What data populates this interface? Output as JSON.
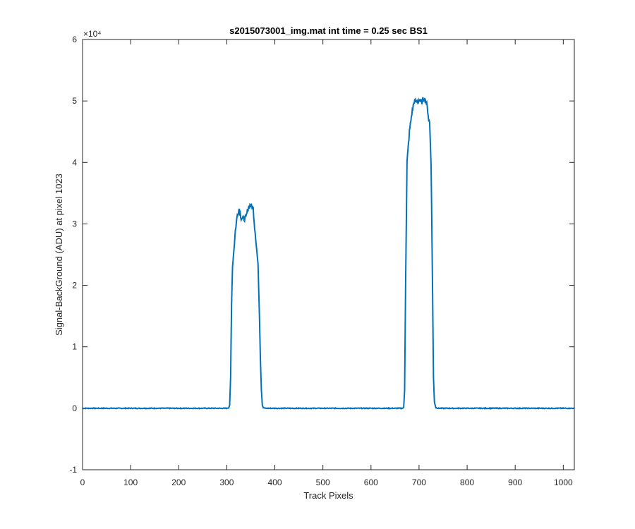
{
  "chart_data": {
    "type": "line",
    "title": "s2015073001_img.mat int time = 0.25 sec   BS1",
    "xlabel": "Track Pixels",
    "ylabel": "Signal-BackGround (ADU) at pixel 1023",
    "xlim": [
      0,
      1023
    ],
    "ylim": [
      -10000,
      60000
    ],
    "y_exponent_label": "×10⁴",
    "y_exponent": 4,
    "x_ticks": [
      0,
      100,
      200,
      300,
      400,
      500,
      600,
      700,
      800,
      900,
      1000
    ],
    "y_ticks": [
      -10000,
      0,
      10000,
      20000,
      30000,
      40000,
      50000,
      60000
    ],
    "y_tick_labels": [
      "-1",
      "0",
      "1",
      "2",
      "3",
      "4",
      "5",
      "6"
    ],
    "grid": false,
    "series": [
      {
        "color": "#0072BD",
        "x": [
          0,
          100,
          200,
          300,
          304,
          306,
          308,
          310,
          312,
          315,
          318,
          322,
          326,
          330,
          335,
          340,
          345,
          350,
          355,
          358,
          360,
          362,
          365,
          368,
          370,
          372,
          374,
          376,
          380,
          500,
          600,
          665,
          668,
          670,
          672,
          675,
          680,
          685,
          690,
          695,
          700,
          705,
          710,
          715,
          718,
          720,
          722,
          725,
          728,
          730,
          732,
          735,
          740,
          800,
          900,
          1023
        ],
        "y": [
          0,
          0,
          0,
          0,
          100,
          500,
          5000,
          17000,
          23000,
          26000,
          29000,
          31500,
          32500,
          31000,
          30800,
          31000,
          32800,
          33000,
          32500,
          29500,
          28000,
          26000,
          23500,
          15000,
          8000,
          3000,
          500,
          100,
          0,
          0,
          0,
          0,
          100,
          3000,
          20000,
          40000,
          45000,
          48000,
          50000,
          49800,
          50200,
          49700,
          50500,
          49800,
          48500,
          47000,
          46500,
          40000,
          20000,
          5000,
          1000,
          100,
          0,
          0,
          0,
          0
        ]
      }
    ]
  }
}
